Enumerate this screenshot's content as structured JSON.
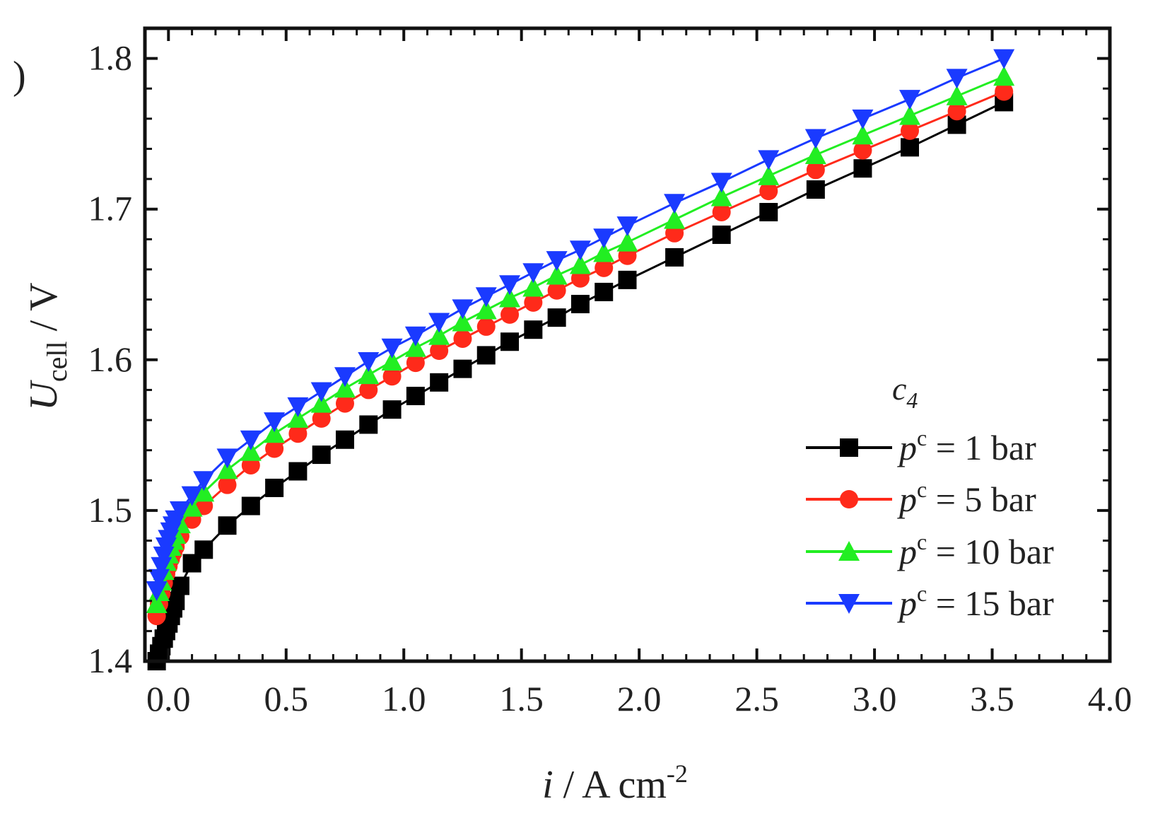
{
  "chart_data": {
    "type": "line",
    "panel_label": ")",
    "ylabel": {
      "main": "U",
      "sub": "cell",
      "unit": "  /  V"
    },
    "xlabel": {
      "main": "i",
      "unit": "  /  A cm",
      "sup": "-2"
    },
    "xlim": [
      -0.1,
      4.0
    ],
    "ylim": [
      1.4,
      1.82
    ],
    "x_ticks": [
      "0.0",
      "0.5",
      "1.0",
      "1.5",
      "2.0",
      "2.5",
      "3.0",
      "3.5",
      "4.0"
    ],
    "y_ticks": [
      "1.4",
      "1.5",
      "1.6",
      "1.7",
      "1.8"
    ],
    "legend": {
      "title": "c",
      "title_sub": "4",
      "placement": "right"
    },
    "x": [
      -0.05,
      -0.04,
      -0.03,
      -0.02,
      -0.01,
      0.0,
      0.01,
      0.02,
      0.03,
      0.05,
      0.1,
      0.15,
      0.25,
      0.35,
      0.45,
      0.55,
      0.65,
      0.75,
      0.85,
      0.95,
      1.05,
      1.15,
      1.25,
      1.35,
      1.45,
      1.55,
      1.65,
      1.75,
      1.85,
      1.95,
      2.15,
      2.35,
      2.55,
      2.75,
      2.95,
      3.15,
      3.35,
      3.55
    ],
    "series": [
      {
        "name": "p",
        "name_sup": "c",
        "name_rest": " = 1 bar",
        "color": "#000000",
        "marker": "square",
        "values": [
          1.4,
          1.405,
          1.41,
          1.415,
          1.42,
          1.425,
          1.43,
          1.435,
          1.44,
          1.45,
          1.465,
          1.474,
          1.49,
          1.503,
          1.515,
          1.526,
          1.537,
          1.547,
          1.557,
          1.567,
          1.576,
          1.585,
          1.594,
          1.603,
          1.612,
          1.62,
          1.628,
          1.637,
          1.645,
          1.653,
          1.668,
          1.683,
          1.698,
          1.713,
          1.727,
          1.741,
          1.756,
          1.771
        ]
      },
      {
        "name": "p",
        "name_sup": "c",
        "name_rest": " = 5 bar",
        "color": "#ff2a1a",
        "marker": "circle",
        "values": [
          1.43,
          1.438,
          1.445,
          1.452,
          1.458,
          1.463,
          1.468,
          1.472,
          1.476,
          1.483,
          1.494,
          1.503,
          1.517,
          1.53,
          1.541,
          1.551,
          1.561,
          1.571,
          1.58,
          1.589,
          1.598,
          1.606,
          1.614,
          1.622,
          1.63,
          1.638,
          1.646,
          1.654,
          1.661,
          1.669,
          1.684,
          1.698,
          1.712,
          1.726,
          1.739,
          1.752,
          1.765,
          1.778
        ]
      },
      {
        "name": "p",
        "name_sup": "c",
        "name_rest": " = 10 bar",
        "color": "#22ee22",
        "marker": "triangle-up",
        "values": [
          1.438,
          1.446,
          1.453,
          1.46,
          1.466,
          1.471,
          1.476,
          1.48,
          1.484,
          1.491,
          1.502,
          1.512,
          1.527,
          1.539,
          1.551,
          1.561,
          1.571,
          1.581,
          1.59,
          1.599,
          1.608,
          1.616,
          1.625,
          1.633,
          1.641,
          1.648,
          1.656,
          1.663,
          1.671,
          1.678,
          1.693,
          1.708,
          1.722,
          1.736,
          1.749,
          1.762,
          1.775,
          1.788
        ]
      },
      {
        "name": "p",
        "name_sup": "c",
        "name_rest": " = 15 bar",
        "color": "#1a3aff",
        "marker": "triangle-down",
        "values": [
          1.447,
          1.455,
          1.463,
          1.47,
          1.476,
          1.481,
          1.486,
          1.49,
          1.494,
          1.5,
          1.51,
          1.52,
          1.535,
          1.547,
          1.559,
          1.569,
          1.579,
          1.589,
          1.599,
          1.608,
          1.616,
          1.625,
          1.634,
          1.642,
          1.65,
          1.658,
          1.666,
          1.673,
          1.681,
          1.689,
          1.704,
          1.718,
          1.733,
          1.747,
          1.76,
          1.773,
          1.787,
          1.8
        ]
      }
    ]
  }
}
